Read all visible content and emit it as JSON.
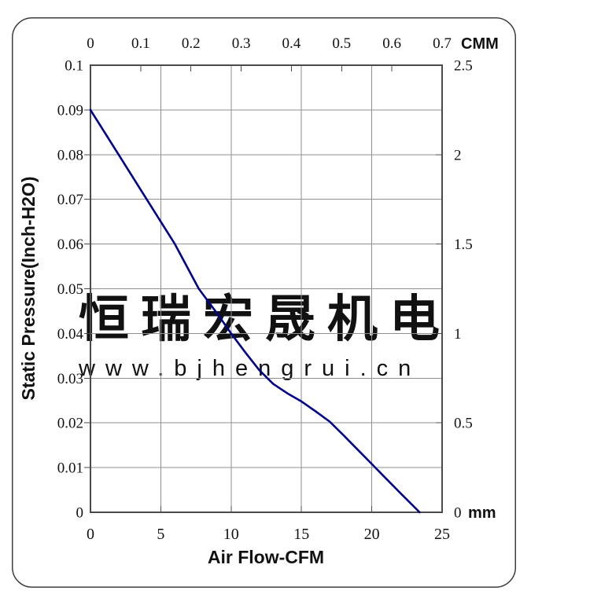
{
  "page": {
    "background": "#ffffff",
    "border_color": "#3f3f3f"
  },
  "watermark": {
    "text_cn": "恒瑞宏晟机电",
    "text_url": "www.bjhengrui.cn",
    "color_cn": "#ececec",
    "color_url": "#e7e7e7"
  },
  "chart_data": {
    "type": "line",
    "title": "",
    "grid": {
      "on": true,
      "color": "#8f8f8f",
      "x_lines": [
        5,
        10,
        15,
        20
      ],
      "y_lines": [
        0.01,
        0.02,
        0.03,
        0.04,
        0.05,
        0.06,
        0.07,
        0.08,
        0.09
      ]
    },
    "x_axis": {
      "label": "Air Flow-CFM",
      "range": [
        0,
        25
      ],
      "ticks": [
        0,
        5,
        10,
        15,
        20,
        25
      ]
    },
    "y_axis": {
      "label": "Static Pressure(Inch-H2O)",
      "range": [
        0,
        0.1
      ],
      "ticks": [
        0.1,
        0.09,
        0.08,
        0.07,
        0.06,
        0.05,
        0.04,
        0.03,
        0.02,
        0.01,
        0
      ]
    },
    "top_axis": {
      "label": "CMM",
      "range": [
        0,
        0.7
      ],
      "ticks": [
        0,
        0.1,
        0.2,
        0.3,
        0.4,
        0.5,
        0.6,
        0.7
      ]
    },
    "right_axis": {
      "label": "mm",
      "range": [
        0,
        2.5
      ],
      "ticks": [
        2.5,
        2,
        1.5,
        1,
        0.5,
        0
      ]
    },
    "series": [
      {
        "name": "static-pressure-vs-airflow",
        "color": "#00008b",
        "points": [
          [
            0,
            0.09
          ],
          [
            2,
            0.08
          ],
          [
            4,
            0.07
          ],
          [
            6,
            0.06
          ],
          [
            7.7,
            0.05
          ],
          [
            9,
            0.0445
          ],
          [
            10,
            0.04
          ],
          [
            11,
            0.0358
          ],
          [
            12,
            0.0318
          ],
          [
            13,
            0.0287
          ],
          [
            14,
            0.0266
          ],
          [
            15,
            0.0248
          ],
          [
            16,
            0.0226
          ],
          [
            17,
            0.0203
          ],
          [
            18,
            0.0172
          ],
          [
            19,
            0.014
          ],
          [
            20,
            0.0108
          ],
          [
            21,
            0.0076
          ],
          [
            22,
            0.0044
          ],
          [
            23.4,
            0
          ]
        ]
      }
    ]
  }
}
